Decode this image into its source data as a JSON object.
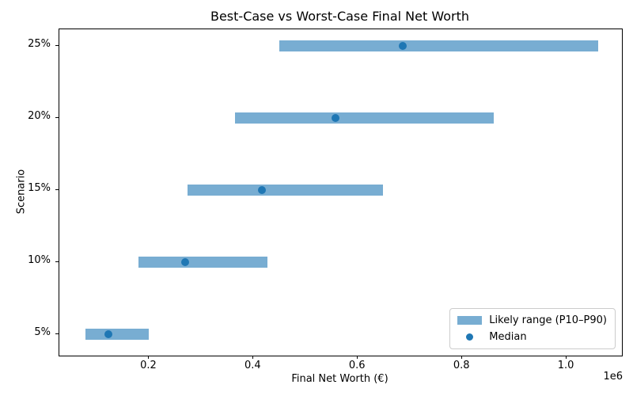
{
  "chart_data": {
    "type": "bar",
    "subtype": "horizontal-range",
    "title": "Best-Case vs Worst-Case Final Net Worth",
    "xlabel": "Final Net Worth (€)",
    "ylabel": "Scenario",
    "x_offset_label": "1e6",
    "xlim": [
      28000,
      1106000
    ],
    "x_ticks": [
      200000,
      400000,
      600000,
      800000,
      1000000
    ],
    "x_tick_labels": [
      "0.2",
      "0.4",
      "0.6",
      "0.8",
      "1.0"
    ],
    "grid": false,
    "rows": [
      {
        "label": "25%",
        "p10": 450000,
        "median": 686000,
        "p90": 1061000
      },
      {
        "label": "20%",
        "p10": 364000,
        "median": 557000,
        "p90": 860000
      },
      {
        "label": "15%",
        "p10": 273000,
        "median": 416000,
        "p90": 648000
      },
      {
        "label": "10%",
        "p10": 180000,
        "median": 269000,
        "p90": 427000
      },
      {
        "label": "5%",
        "p10": 78000,
        "median": 122000,
        "p90": 199000
      }
    ],
    "legend": {
      "position": "lower right",
      "items": [
        {
          "label": "Likely range (P10–P90)",
          "swatch": "bar"
        },
        {
          "label": "Median",
          "swatch": "dot"
        }
      ]
    },
    "colors": {
      "range_bar": "#78add2",
      "median_dot": "#1f77b4",
      "axis": "#000000",
      "legend_border": "#cccccc"
    }
  }
}
